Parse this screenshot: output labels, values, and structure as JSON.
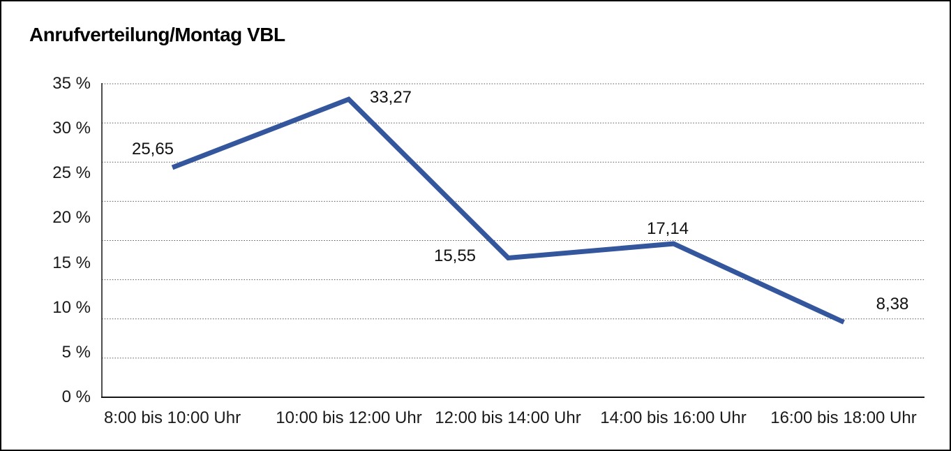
{
  "title": "Anrufverteilung/Montag VBL",
  "colors": {
    "line": "#34569D",
    "grid": "#555555",
    "axis": "#151515",
    "text": "#1a1a1a",
    "background": "#ffffff",
    "frame_border": "#000000"
  },
  "chart_data": {
    "type": "line",
    "title": "Anrufverteilung/Montag VBL",
    "categories": [
      "8:00 bis 10:00 Uhr",
      "10:00 bis 12:00 Uhr",
      "12:00 bis 14:00 Uhr",
      "14:00 bis 16:00 Uhr",
      "16:00 bis 18:00 Uhr"
    ],
    "values": [
      25.65,
      33.27,
      15.55,
      17.14,
      8.38
    ],
    "value_labels": [
      "25,65",
      "33,27",
      "15,55",
      "17,14",
      "8,38"
    ],
    "y_ticks": [
      "35 %",
      "30 %",
      "25 %",
      "20 %",
      "15 %",
      "10 %",
      "5 %",
      "0 %"
    ],
    "ylim": [
      0,
      35
    ],
    "xlabel": "",
    "ylabel": "",
    "legend": "none",
    "grid": "horizontal-dotted",
    "series_name": "Anrufverteilung Montag VBL"
  }
}
